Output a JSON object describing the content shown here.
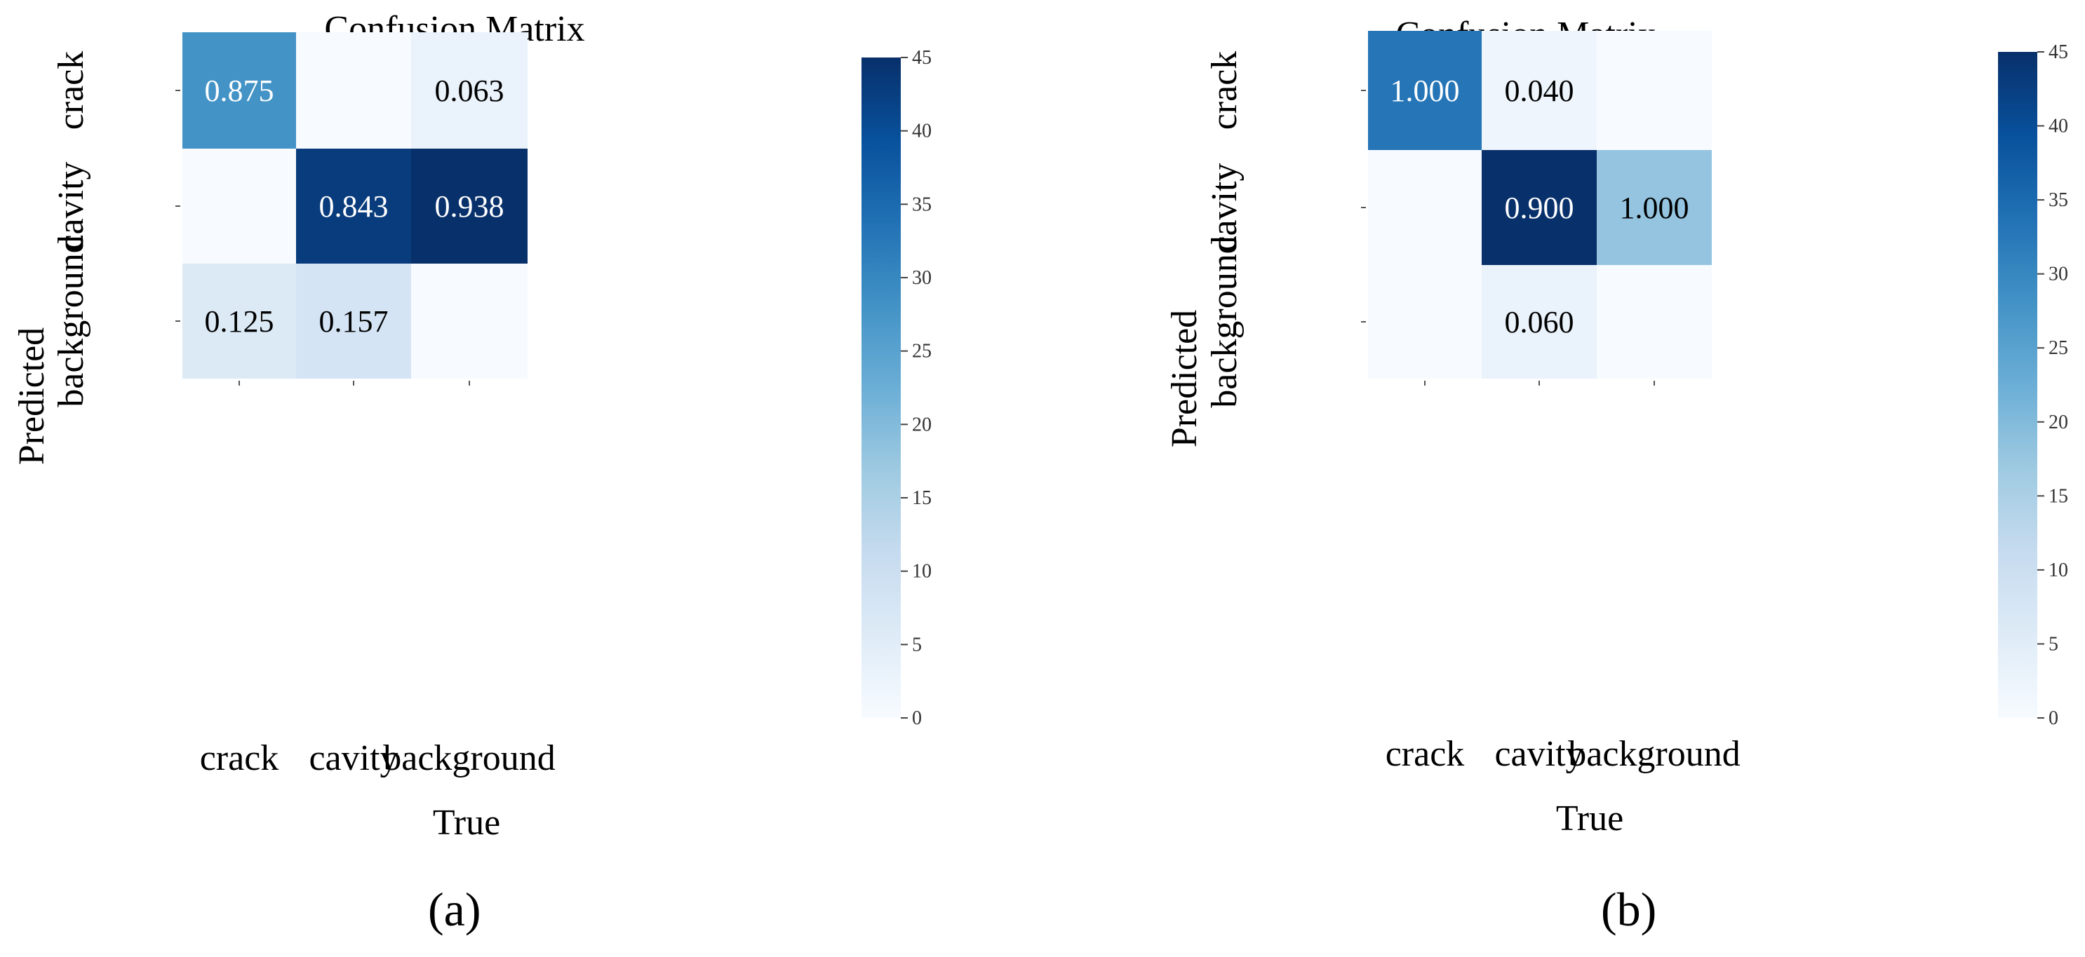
{
  "chart_data": [
    {
      "type": "heatmap",
      "panel_label": "(a)",
      "title": "Confusion Matrix",
      "xlabel": "True",
      "ylabel": "Predicted",
      "x_categories": [
        "crack",
        "cavity",
        "background"
      ],
      "y_categories": [
        "crack",
        "cavity",
        "background"
      ],
      "cells": [
        [
          {
            "label": "0.875",
            "color_value": 28
          },
          {
            "label": "",
            "color_value": 0
          },
          {
            "label": "0.063",
            "color_value": 3
          }
        ],
        [
          {
            "label": "",
            "color_value": 0
          },
          {
            "label": "0.843",
            "color_value": 43
          },
          {
            "label": "0.938",
            "color_value": 45
          }
        ],
        [
          {
            "label": "0.125",
            "color_value": 6
          },
          {
            "label": "0.157",
            "color_value": 8
          },
          {
            "label": "",
            "color_value": 0
          }
        ]
      ],
      "colorbar": {
        "min": 0,
        "max": 45,
        "ticks": [
          0,
          5,
          10,
          15,
          20,
          25,
          30,
          35,
          40,
          45
        ]
      },
      "colormap": "Blues"
    },
    {
      "type": "heatmap",
      "panel_label": "(b)",
      "title": "Confusion Matrix",
      "xlabel": "True",
      "ylabel": "Predicted",
      "x_categories": [
        "crack",
        "cavity",
        "background"
      ],
      "y_categories": [
        "crack",
        "cavity",
        "background"
      ],
      "cells": [
        [
          {
            "label": "1.000",
            "color_value": 33
          },
          {
            "label": "0.040",
            "color_value": 2
          },
          {
            "label": "",
            "color_value": 0
          }
        ],
        [
          {
            "label": "",
            "color_value": 0
          },
          {
            "label": "0.900",
            "color_value": 45
          },
          {
            "label": "1.000",
            "color_value": 18
          }
        ],
        [
          {
            "label": "",
            "color_value": 0
          },
          {
            "label": "0.060",
            "color_value": 3
          },
          {
            "label": "",
            "color_value": 0
          }
        ]
      ],
      "colorbar": {
        "min": 0,
        "max": 45,
        "ticks": [
          0,
          5,
          10,
          15,
          20,
          25,
          30,
          35,
          40,
          45
        ]
      },
      "colormap": "Blues"
    }
  ]
}
